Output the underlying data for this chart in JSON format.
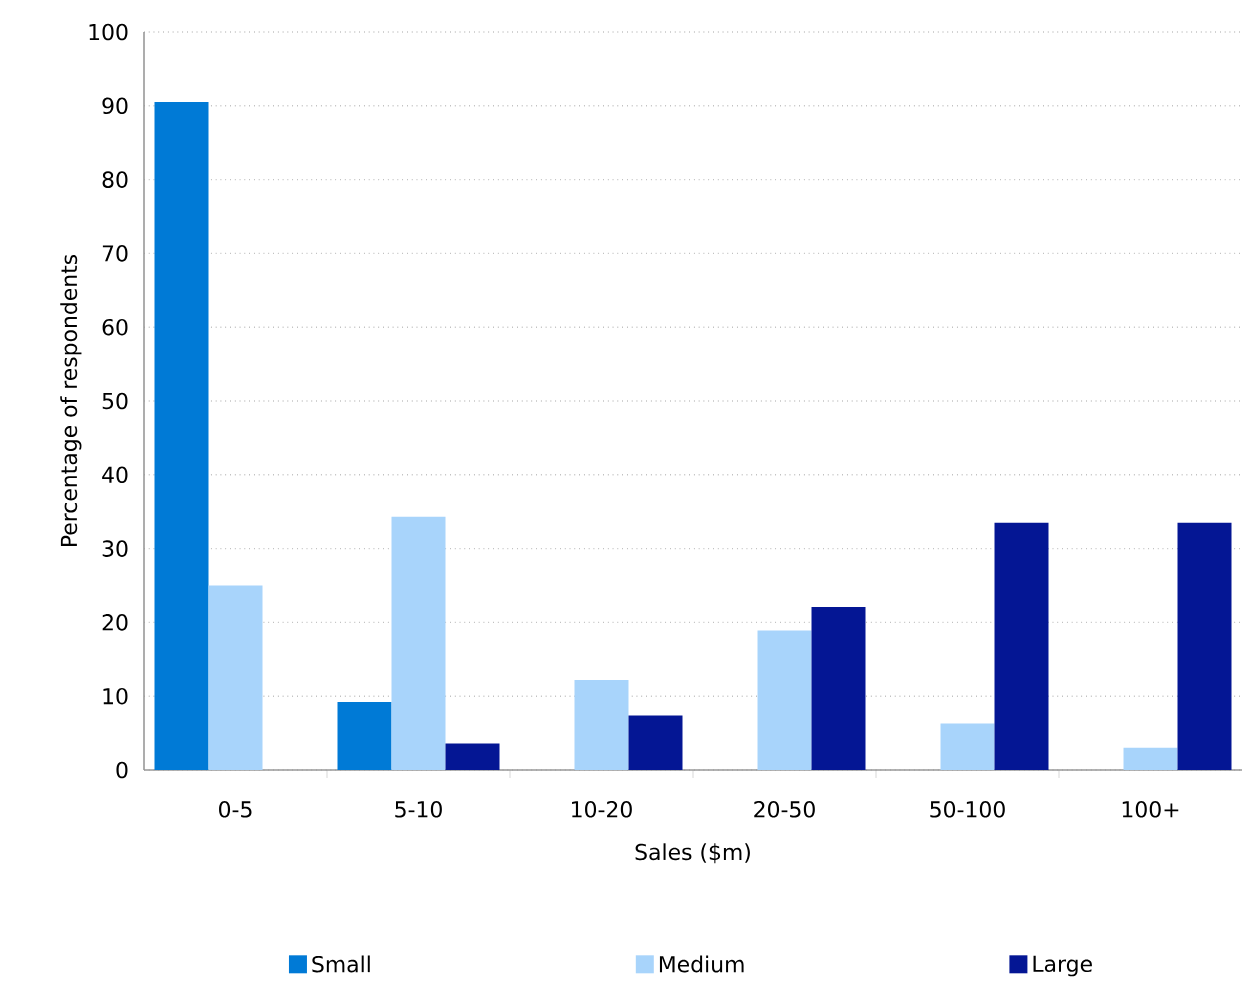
{
  "chart_data": {
    "type": "bar",
    "xlabel": "Sales ($m)",
    "ylabel": "Percentage of respondents",
    "categories": [
      "0-5",
      "5-10",
      "10-20",
      "20-50",
      "50-100",
      "100+"
    ],
    "series": [
      {
        "name": "Small",
        "color": "#007ad6",
        "values": [
          90.5,
          9.2,
          0,
          0,
          0,
          0
        ]
      },
      {
        "name": "Medium",
        "color": "#a8d4fb",
        "values": [
          25,
          34.3,
          12.2,
          18.9,
          6.3,
          3.0
        ]
      },
      {
        "name": "Large",
        "color": "#041694",
        "values": [
          0,
          3.6,
          7.4,
          22.1,
          33.5,
          33.5
        ]
      }
    ],
    "ylim": [
      0,
      100
    ],
    "yticks": [
      0,
      10,
      20,
      30,
      40,
      50,
      60,
      70,
      80,
      90,
      100
    ],
    "grid": "y",
    "legend": "bottom"
  }
}
